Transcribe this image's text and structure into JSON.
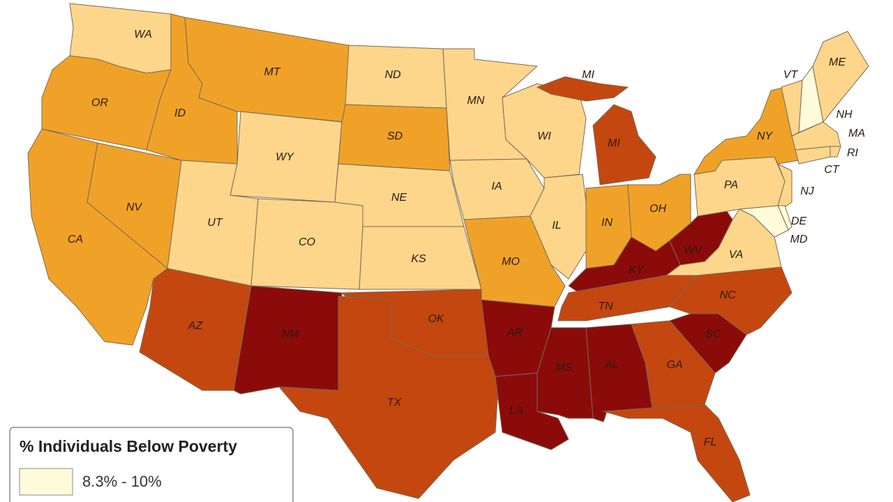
{
  "legend": {
    "title": "% Individuals Below Poverty",
    "items": [
      {
        "label": "8.3% - 10%",
        "color": "#fffbda"
      }
    ]
  },
  "states": [
    {
      "label": "WA",
      "color": "#fdd68b"
    },
    {
      "label": "OR",
      "color": "#f0a228"
    },
    {
      "label": "CA",
      "color": "#f0a228"
    },
    {
      "label": "NV",
      "color": "#f0a228"
    },
    {
      "label": "ID",
      "color": "#f0a228"
    },
    {
      "label": "MT",
      "color": "#f0a228"
    },
    {
      "label": "WY",
      "color": "#fdd68b"
    },
    {
      "label": "UT",
      "color": "#fdd68b"
    },
    {
      "label": "CO",
      "color": "#fdd68b"
    },
    {
      "label": "AZ",
      "color": "#c4470f"
    },
    {
      "label": "NM",
      "color": "#8b0b0b"
    },
    {
      "label": "ND",
      "color": "#fdd68b"
    },
    {
      "label": "SD",
      "color": "#f0a228"
    },
    {
      "label": "NE",
      "color": "#fdd68b"
    },
    {
      "label": "KS",
      "color": "#fdd68b"
    },
    {
      "label": "OK",
      "color": "#c4470f"
    },
    {
      "label": "TX",
      "color": "#c4470f"
    },
    {
      "label": "MN",
      "color": "#fdd68b"
    },
    {
      "label": "IA",
      "color": "#fdd68b"
    },
    {
      "label": "MO",
      "color": "#f0a228"
    },
    {
      "label": "AR",
      "color": "#8b0b0b"
    },
    {
      "label": "LA",
      "color": "#8b0b0b"
    },
    {
      "label": "WI",
      "color": "#fdd68b"
    },
    {
      "label": "IL",
      "color": "#fdd68b"
    },
    {
      "label": "MI",
      "color": "#c4470f"
    },
    {
      "label": "IN",
      "color": "#f0a228"
    },
    {
      "label": "OH",
      "color": "#f0a228"
    },
    {
      "label": "KY",
      "color": "#8b0b0b"
    },
    {
      "label": "TN",
      "color": "#c4470f"
    },
    {
      "label": "MS",
      "color": "#8b0b0b"
    },
    {
      "label": "AL",
      "color": "#8b0b0b"
    },
    {
      "label": "GA",
      "color": "#c4470f"
    },
    {
      "label": "FL",
      "color": "#c4470f"
    },
    {
      "label": "SC",
      "color": "#8b0b0b"
    },
    {
      "label": "NC",
      "color": "#c4470f"
    },
    {
      "label": "VA",
      "color": "#fdd68b"
    },
    {
      "label": "WV",
      "color": "#8b0b0b"
    },
    {
      "label": "PA",
      "color": "#fdd68b"
    },
    {
      "label": "NY",
      "color": "#f0a228"
    },
    {
      "label": "VT",
      "color": "#fdd68b"
    },
    {
      "label": "NH",
      "color": "#fffbda"
    },
    {
      "label": "ME",
      "color": "#fdd68b"
    },
    {
      "label": "MA",
      "color": "#fdd68b"
    },
    {
      "label": "RI",
      "color": "#fdd68b"
    },
    {
      "label": "CT",
      "color": "#fdd68b"
    },
    {
      "label": "NJ",
      "color": "#fdd68b"
    },
    {
      "label": "DE",
      "color": "#fffbda"
    },
    {
      "label": "MD",
      "color": "#fffbda"
    }
  ]
}
